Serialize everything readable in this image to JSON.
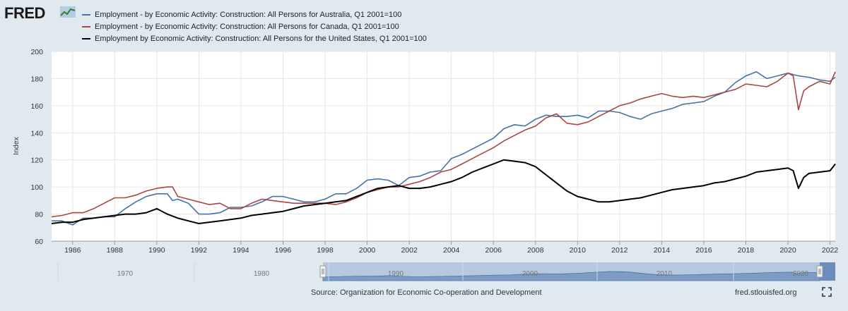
{
  "header": {
    "logo_text": "FRED",
    "logo_icon": "chart-line-icon"
  },
  "legend": [
    {
      "label": "Employment - by Economic Activity: Construction: All Persons for Australia, Q1 2001=100",
      "color": "#4572a7"
    },
    {
      "label": "Employment - by Economic Activity: Construction: All Persons for Canada, Q1 2001=100",
      "color": "#aa4643"
    },
    {
      "label": "Employment by Economic Activity: Construction: All Persons for the United States, Q1 2001=100",
      "color": "#000000"
    }
  ],
  "footer": {
    "source": "Source: Organization for Economic Co-operation and Development",
    "site": "fred.stlouisfed.org",
    "fullscreen_icon": "fullscreen-icon"
  },
  "chart_data": {
    "type": "line",
    "ylabel": "Index",
    "xlim": [
      1985,
      2022.25
    ],
    "ylim": [
      60,
      200
    ],
    "yticks": [
      60,
      80,
      100,
      120,
      140,
      160,
      180,
      200
    ],
    "xticks": [
      1986,
      1988,
      1990,
      1992,
      1994,
      1996,
      1998,
      2000,
      2002,
      2004,
      2006,
      2008,
      2010,
      2012,
      2014,
      2016,
      2018,
      2020,
      2022
    ],
    "grid": true,
    "navigator_ticks": [
      "1970",
      "1980",
      "1990",
      "2000",
      "2010",
      "2020"
    ],
    "series": [
      {
        "name": "Employment - by Economic Activity: Construction: All Persons for Australia, Q1 2001=100",
        "color": "#4572a7",
        "points": [
          [
            1985,
            75
          ],
          [
            1985.5,
            75
          ],
          [
            1986,
            72
          ],
          [
            1986.5,
            77
          ],
          [
            1987,
            77
          ],
          [
            1987.5,
            78
          ],
          [
            1988,
            78
          ],
          [
            1988.5,
            84
          ],
          [
            1989,
            89
          ],
          [
            1989.5,
            93
          ],
          [
            1990,
            95
          ],
          [
            1990.5,
            95
          ],
          [
            1990.75,
            90
          ],
          [
            1991,
            91
          ],
          [
            1991.5,
            88
          ],
          [
            1992,
            80
          ],
          [
            1992.5,
            80
          ],
          [
            1993,
            81
          ],
          [
            1993.5,
            85
          ],
          [
            1994,
            85
          ],
          [
            1994.5,
            86
          ],
          [
            1995,
            89
          ],
          [
            1995.5,
            93
          ],
          [
            1996,
            93
          ],
          [
            1996.5,
            91
          ],
          [
            1997,
            89
          ],
          [
            1997.5,
            89
          ],
          [
            1998,
            91
          ],
          [
            1998.5,
            95
          ],
          [
            1999,
            95
          ],
          [
            1999.5,
            99
          ],
          [
            2000,
            105
          ],
          [
            2000.5,
            106
          ],
          [
            2001,
            105
          ],
          [
            2001.5,
            101
          ],
          [
            2002,
            107
          ],
          [
            2002.5,
            108
          ],
          [
            2003,
            111
          ],
          [
            2003.5,
            112
          ],
          [
            2004,
            121
          ],
          [
            2004.5,
            124
          ],
          [
            2005,
            128
          ],
          [
            2005.5,
            132
          ],
          [
            2006,
            136
          ],
          [
            2006.5,
            143
          ],
          [
            2007,
            146
          ],
          [
            2007.5,
            145
          ],
          [
            2008,
            150
          ],
          [
            2008.5,
            153
          ],
          [
            2009,
            152
          ],
          [
            2009.5,
            152
          ],
          [
            2010,
            153
          ],
          [
            2010.5,
            151
          ],
          [
            2011,
            156
          ],
          [
            2011.5,
            156
          ],
          [
            2012,
            155
          ],
          [
            2012.5,
            152
          ],
          [
            2013,
            150
          ],
          [
            2013.5,
            154
          ],
          [
            2014,
            156
          ],
          [
            2014.5,
            158
          ],
          [
            2015,
            161
          ],
          [
            2015.5,
            162
          ],
          [
            2016,
            163
          ],
          [
            2016.5,
            167
          ],
          [
            2017,
            170
          ],
          [
            2017.5,
            177
          ],
          [
            2018,
            182
          ],
          [
            2018.5,
            185
          ],
          [
            2019,
            180
          ],
          [
            2019.5,
            182
          ],
          [
            2020,
            184
          ],
          [
            2020.5,
            182
          ],
          [
            2021,
            181
          ],
          [
            2021.5,
            179
          ],
          [
            2022,
            178
          ],
          [
            2022.25,
            181
          ]
        ]
      },
      {
        "name": "Employment - by Economic Activity: Construction: All Persons for Canada, Q1 2001=100",
        "color": "#aa4643",
        "points": [
          [
            1985,
            78
          ],
          [
            1985.5,
            79
          ],
          [
            1986,
            81
          ],
          [
            1986.5,
            81
          ],
          [
            1987,
            84
          ],
          [
            1987.5,
            88
          ],
          [
            1988,
            92
          ],
          [
            1988.5,
            92
          ],
          [
            1989,
            94
          ],
          [
            1989.5,
            97
          ],
          [
            1990,
            99
          ],
          [
            1990.5,
            100
          ],
          [
            1990.75,
            100
          ],
          [
            1991,
            93
          ],
          [
            1991.5,
            91
          ],
          [
            1992,
            89
          ],
          [
            1992.5,
            87
          ],
          [
            1993,
            88
          ],
          [
            1993.5,
            84
          ],
          [
            1994,
            84
          ],
          [
            1994.5,
            88
          ],
          [
            1995,
            91
          ],
          [
            1995.5,
            90
          ],
          [
            1996,
            89
          ],
          [
            1996.5,
            88
          ],
          [
            1997,
            88
          ],
          [
            1997.5,
            88
          ],
          [
            1998,
            88
          ],
          [
            1998.5,
            87
          ],
          [
            1999,
            89
          ],
          [
            1999.5,
            92
          ],
          [
            2000,
            96
          ],
          [
            2000.5,
            98
          ],
          [
            2001,
            100
          ],
          [
            2001.5,
            100
          ],
          [
            2002,
            102
          ],
          [
            2002.5,
            104
          ],
          [
            2003,
            107
          ],
          [
            2003.5,
            111
          ],
          [
            2004,
            113
          ],
          [
            2004.5,
            117
          ],
          [
            2005,
            121
          ],
          [
            2005.5,
            125
          ],
          [
            2006,
            129
          ],
          [
            2006.5,
            134
          ],
          [
            2007,
            138
          ],
          [
            2007.5,
            142
          ],
          [
            2008,
            145
          ],
          [
            2008.5,
            151
          ],
          [
            2009,
            154
          ],
          [
            2009.5,
            147
          ],
          [
            2010,
            146
          ],
          [
            2010.5,
            148
          ],
          [
            2011,
            152
          ],
          [
            2011.5,
            156
          ],
          [
            2012,
            160
          ],
          [
            2012.5,
            162
          ],
          [
            2013,
            165
          ],
          [
            2013.5,
            167
          ],
          [
            2014,
            169
          ],
          [
            2014.5,
            167
          ],
          [
            2015,
            166
          ],
          [
            2015.5,
            167
          ],
          [
            2016,
            166
          ],
          [
            2016.5,
            168
          ],
          [
            2017,
            170
          ],
          [
            2017.5,
            172
          ],
          [
            2018,
            176
          ],
          [
            2018.5,
            175
          ],
          [
            2019,
            174
          ],
          [
            2019.5,
            178
          ],
          [
            2020,
            184
          ],
          [
            2020.25,
            182
          ],
          [
            2020.5,
            157
          ],
          [
            2020.75,
            171
          ],
          [
            2021,
            174
          ],
          [
            2021.5,
            178
          ],
          [
            2022,
            176
          ],
          [
            2022.25,
            185
          ]
        ]
      },
      {
        "name": "Employment by Economic Activity: Construction: All Persons for the United States, Q1 2001=100",
        "color": "#000000",
        "points": [
          [
            1985,
            73
          ],
          [
            1985.5,
            74
          ],
          [
            1986,
            74
          ],
          [
            1986.5,
            76
          ],
          [
            1987,
            77
          ],
          [
            1987.5,
            78
          ],
          [
            1988,
            79
          ],
          [
            1988.5,
            80
          ],
          [
            1989,
            80
          ],
          [
            1989.5,
            81
          ],
          [
            1990,
            84
          ],
          [
            1990.5,
            80
          ],
          [
            1991,
            77
          ],
          [
            1991.5,
            75
          ],
          [
            1992,
            73
          ],
          [
            1992.5,
            74
          ],
          [
            1993,
            75
          ],
          [
            1993.5,
            76
          ],
          [
            1994,
            77
          ],
          [
            1994.5,
            79
          ],
          [
            1995,
            80
          ],
          [
            1995.5,
            81
          ],
          [
            1996,
            82
          ],
          [
            1996.5,
            84
          ],
          [
            1997,
            86
          ],
          [
            1997.5,
            87
          ],
          [
            1998,
            88
          ],
          [
            1998.5,
            89
          ],
          [
            1999,
            90
          ],
          [
            1999.5,
            93
          ],
          [
            2000,
            96
          ],
          [
            2000.5,
            99
          ],
          [
            2001,
            100
          ],
          [
            2001.5,
            101
          ],
          [
            2002,
            99
          ],
          [
            2002.5,
            99
          ],
          [
            2003,
            100
          ],
          [
            2003.5,
            102
          ],
          [
            2004,
            104
          ],
          [
            2004.5,
            107
          ],
          [
            2005,
            111
          ],
          [
            2005.5,
            114
          ],
          [
            2006,
            117
          ],
          [
            2006.5,
            120
          ],
          [
            2007,
            119
          ],
          [
            2007.5,
            118
          ],
          [
            2008,
            115
          ],
          [
            2008.5,
            109
          ],
          [
            2009,
            103
          ],
          [
            2009.5,
            97
          ],
          [
            2010,
            93
          ],
          [
            2010.5,
            91
          ],
          [
            2011,
            89
          ],
          [
            2011.5,
            89
          ],
          [
            2012,
            90
          ],
          [
            2012.5,
            91
          ],
          [
            2013,
            92
          ],
          [
            2013.5,
            94
          ],
          [
            2014,
            96
          ],
          [
            2014.5,
            98
          ],
          [
            2015,
            99
          ],
          [
            2015.5,
            100
          ],
          [
            2016,
            101
          ],
          [
            2016.5,
            103
          ],
          [
            2017,
            104
          ],
          [
            2017.5,
            106
          ],
          [
            2018,
            108
          ],
          [
            2018.5,
            111
          ],
          [
            2019,
            112
          ],
          [
            2019.5,
            113
          ],
          [
            2020,
            114
          ],
          [
            2020.25,
            112
          ],
          [
            2020.5,
            99
          ],
          [
            2020.75,
            107
          ],
          [
            2021,
            110
          ],
          [
            2021.5,
            111
          ],
          [
            2022,
            112
          ],
          [
            2022.25,
            117
          ]
        ]
      }
    ]
  }
}
